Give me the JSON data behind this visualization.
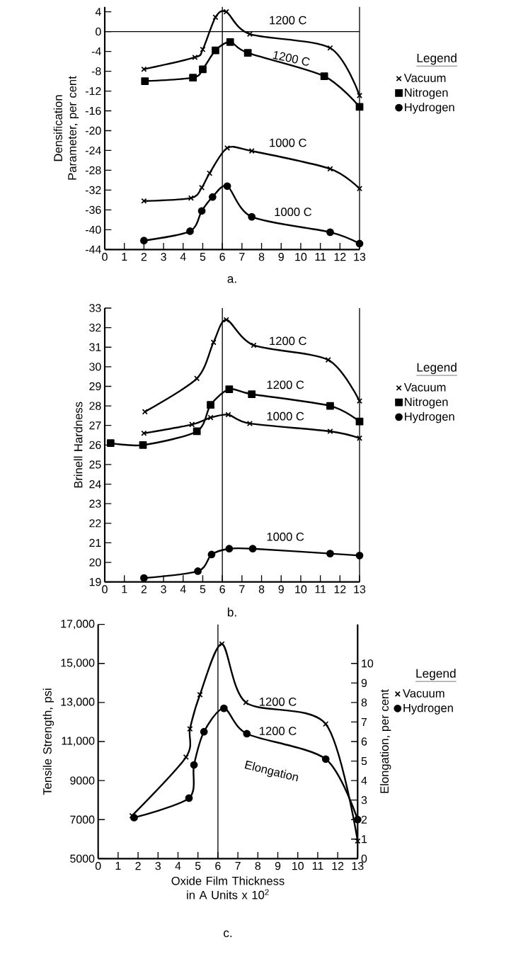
{
  "chart_data": [
    {
      "type": "line",
      "ylabel": "Densification Parameter, per cent",
      "legend_title": "Legend",
      "legend": "right",
      "xlim": [
        0,
        13
      ],
      "xticks": [
        0,
        1,
        2,
        3,
        4,
        5,
        6,
        7,
        8,
        9,
        10,
        11,
        12,
        13
      ],
      "ylim": [
        -44,
        5
      ],
      "yticks": [
        -44,
        -40,
        -36,
        -32,
        -28,
        -24,
        -20,
        -16,
        -12,
        -8,
        -4,
        0,
        4
      ],
      "series": [
        {
          "name": "Vacuum",
          "color": "#000000",
          "marker": "cross",
          "x": [
            2,
            4.6,
            5.0,
            5.65,
            6.2,
            7.4,
            11.5,
            13
          ],
          "values": [
            -7.6,
            -5.2,
            -3.6,
            2.9,
            4.0,
            -0.5,
            -3.3,
            -12.9
          ]
        },
        {
          "name": "Nitrogen",
          "color": "#000000",
          "marker": "square",
          "x": [
            2.05,
            4.5,
            5.0,
            5.65,
            6.4,
            7.3,
            11.2,
            13
          ],
          "values": [
            -10.0,
            -9.3,
            -7.6,
            -3.8,
            -2.1,
            -4.3,
            -9.0,
            -15.2
          ]
        },
        {
          "color": "#000000",
          "marker": "cross",
          "x": [
            2,
            4.4,
            4.95,
            5.35,
            6.25,
            7.5,
            11.5,
            13
          ],
          "values": [
            -34.2,
            -33.6,
            -31.5,
            -28.6,
            -23.5,
            -24.1,
            -27.7,
            -31.7
          ]
        },
        {
          "name": "Hydrogen",
          "color": "#000000",
          "marker": "circle",
          "x": [
            2,
            4.35,
            4.95,
            5.5,
            6.25,
            7.5,
            11.5,
            13
          ],
          "values": [
            -42.2,
            -40.3,
            -36.2,
            -33.4,
            -31.2,
            -37.4,
            -40.5,
            -42.8
          ]
        }
      ],
      "ref_lines": [
        {
          "axis": "y",
          "value": 0
        },
        {
          "axis": "x",
          "value": 6
        }
      ],
      "annotations": [
        "1200 C",
        "1200 C",
        "1000 C",
        "1000 C",
        "a."
      ]
    },
    {
      "type": "line",
      "ylabel": "Brinell Hardness",
      "legend_title": "Legend",
      "legend": "right",
      "xlim": [
        0,
        13
      ],
      "xticks": [
        0,
        1,
        2,
        3,
        4,
        5,
        6,
        7,
        8,
        9,
        10,
        11,
        12,
        13
      ],
      "ylim": [
        19,
        33
      ],
      "yticks": [
        19,
        20,
        21,
        22,
        23,
        24,
        25,
        26,
        27,
        28,
        29,
        30,
        31,
        32,
        33
      ],
      "series": [
        {
          "name": "Vacuum",
          "color": "#000000",
          "marker": "cross",
          "x": [
            2.05,
            4.7,
            5.55,
            6.2,
            7.6,
            11.4,
            13
          ],
          "values": [
            27.7,
            29.4,
            31.25,
            32.4,
            31.1,
            30.35,
            28.25
          ]
        },
        {
          "name": "Nitrogen",
          "color": "#000000",
          "marker": "square",
          "x": [
            0.3,
            1.95,
            4.7,
            5.4,
            6.35,
            7.5,
            11.5,
            13
          ],
          "values": [
            26.1,
            26.0,
            26.7,
            28.05,
            28.85,
            28.6,
            28.0,
            27.2
          ]
        },
        {
          "color": "#000000",
          "marker": "cross",
          "x": [
            2,
            4.45,
            5.4,
            6.3,
            7.4,
            11.5,
            13
          ],
          "values": [
            26.6,
            27.05,
            27.4,
            27.55,
            27.1,
            26.7,
            26.35
          ]
        },
        {
          "name": "Hydrogen",
          "color": "#000000",
          "marker": "circle",
          "x": [
            2,
            4.75,
            5.45,
            6.35,
            7.55,
            11.5,
            13
          ],
          "values": [
            19.2,
            19.55,
            20.4,
            20.7,
            20.7,
            20.45,
            20.35
          ]
        }
      ],
      "ref_lines": [
        {
          "axis": "x",
          "value": 6
        }
      ],
      "annotations": [
        "1200 C",
        "1200 C",
        "1000 C",
        "1000 C",
        "b."
      ]
    },
    {
      "type": "line",
      "xlabel": "Oxide Film Thickness in A Units x 10$^{2}$",
      "ylabel": "Tensile Strength, psi",
      "y2label": "Elongation, per cent",
      "legend_title": "Legend",
      "legend": "right",
      "xlim": [
        0,
        13
      ],
      "xticks": [
        0,
        1,
        2,
        3,
        4,
        5,
        6,
        7,
        8,
        9,
        10,
        11,
        12,
        13
      ],
      "ylim": [
        5000,
        17000
      ],
      "yticks": [
        5000,
        7000,
        9000,
        {
          "value": 11000,
          "label": "11,000"
        },
        {
          "value": 13000,
          "label": "13,000"
        },
        {
          "value": 15000,
          "label": "15,000"
        },
        {
          "value": 17000,
          "label": "17,000"
        }
      ],
      "y2lim": [
        0,
        12
      ],
      "y2ticks": [
        0,
        1,
        2,
        3,
        4,
        5,
        6,
        7,
        8,
        9,
        10
      ],
      "series": [
        {
          "name": "Vacuum",
          "color": "#000000",
          "marker": "cross",
          "x": [
            1.7,
            4.4,
            4.6,
            5.1,
            6.2,
            7.4,
            11.4,
            13
          ],
          "values": [
            7200,
            10200,
            11650,
            13400,
            16000,
            13000,
            11900,
            5900
          ]
        },
        {
          "name": "Hydrogen",
          "color": "#000000",
          "marker": "circle",
          "axis": "y2",
          "x": [
            1.8,
            4.55,
            4.8,
            5.3,
            6.3,
            7.45,
            11.4,
            13
          ],
          "values": [
            2.1,
            3.1,
            4.8,
            6.5,
            7.7,
            6.4,
            5.1,
            2.0
          ]
        }
      ],
      "ref_lines": [
        {
          "axis": "x",
          "value": 6
        }
      ],
      "annotations": [
        "1200 C",
        "1200 C",
        "Elongation",
        "c."
      ]
    }
  ]
}
